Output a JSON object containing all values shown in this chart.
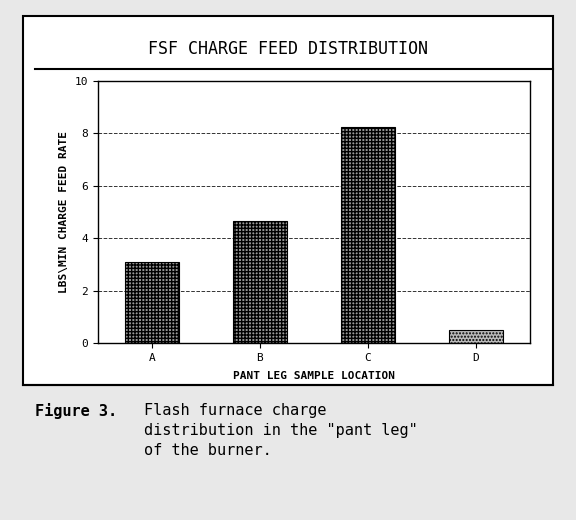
{
  "title": "FSF CHARGE FEED DISTRIBUTION",
  "categories": [
    "A",
    "B",
    "C",
    "D"
  ],
  "values": [
    3.1,
    4.65,
    8.25,
    0.5
  ],
  "xlabel": "PANT LEG SAMPLE LOCATION",
  "ylabel": "LBS\\MIN CHARGE FEED RATE",
  "ylim": [
    0,
    10
  ],
  "yticks": [
    0,
    2,
    4,
    6,
    8,
    10
  ],
  "figure_bg": "#e8e8e8",
  "panel_bg": "#ffffff",
  "axes_bg": "#ffffff",
  "title_fontsize": 12,
  "label_fontsize": 8,
  "tick_fontsize": 8,
  "caption_fontsize": 11,
  "caption_line1": "Figure 3.",
  "caption_line2": "Flash furnace charge",
  "caption_line3": "distribution in the \"pant leg\"",
  "caption_line4": "of the burner."
}
